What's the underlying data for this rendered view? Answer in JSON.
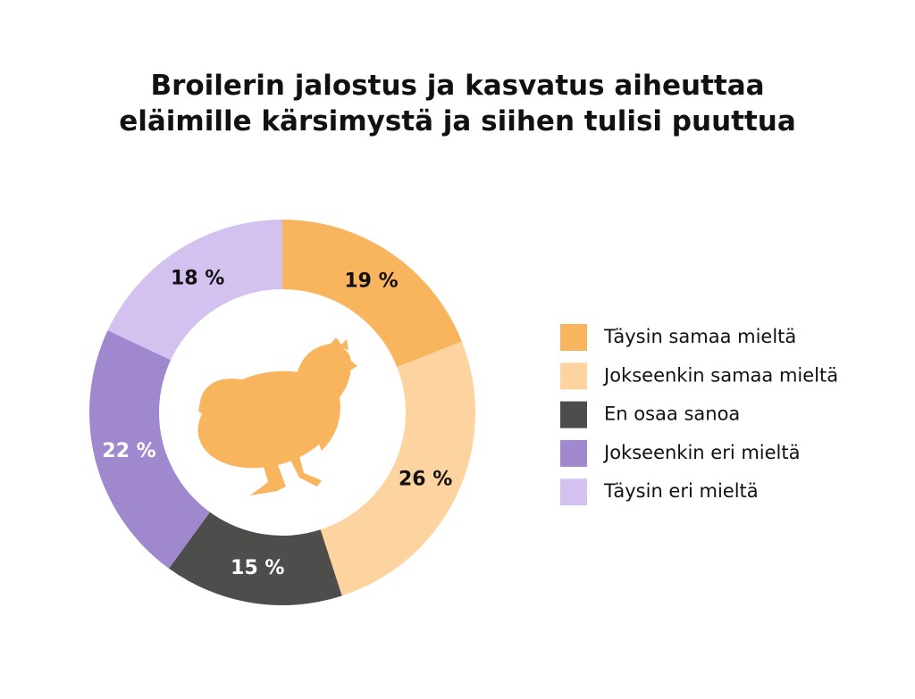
{
  "chart_data": {
    "type": "donut",
    "title": "Broilerin jalostus ja kasvatus aiheuttaa eläimille kärsimystä ja siihen tulisi puuttua",
    "categories": [
      "Täysin samaa mieltä",
      "Jokseenkin samaa mieltä",
      "En osaa sanoa",
      "Jokseenkin eri mieltä",
      "Täysin eri mieltä"
    ],
    "values": [
      19,
      26,
      15,
      22,
      18
    ],
    "value_labels": [
      "19 %",
      "26 %",
      "15 %",
      "22 %",
      "18 %"
    ],
    "colors": [
      "#f9b55e",
      "#fdd49f",
      "#4d4e4c",
      "#9f88cd",
      "#d3c2f0"
    ],
    "label_colors": [
      "#111111",
      "#111111",
      "#ffffff",
      "#ffffff",
      "#111111"
    ],
    "legend": "right"
  }
}
